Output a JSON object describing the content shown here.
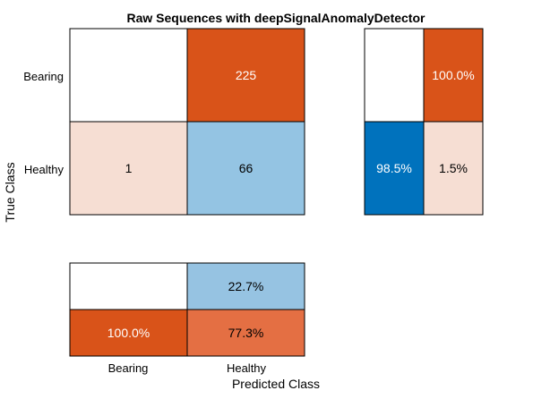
{
  "chart_data": {
    "type": "heatmap",
    "title": "Raw Sequences with deepSignalAnomalyDetector",
    "xlabel": "Predicted Class",
    "ylabel": "True Class",
    "classes": [
      "Bearing",
      "Healthy"
    ],
    "confusion_matrix": [
      [
        0,
        225
      ],
      [
        1,
        66
      ]
    ],
    "row_summary": [
      [
        "",
        "100.0%"
      ],
      [
        "98.5%",
        "1.5%"
      ]
    ],
    "column_summary": [
      [
        "",
        "22.7%"
      ],
      [
        "100.0%",
        "77.3%"
      ]
    ],
    "colors": {
      "correct_high": "#0072BD",
      "correct_low": "#96C3E2",
      "incorrect_high": "#D95319",
      "incorrect_mid": "#E46F43",
      "incorrect_low": "#F6DED3",
      "empty": "#FFFFFF",
      "border": "#000000"
    }
  }
}
